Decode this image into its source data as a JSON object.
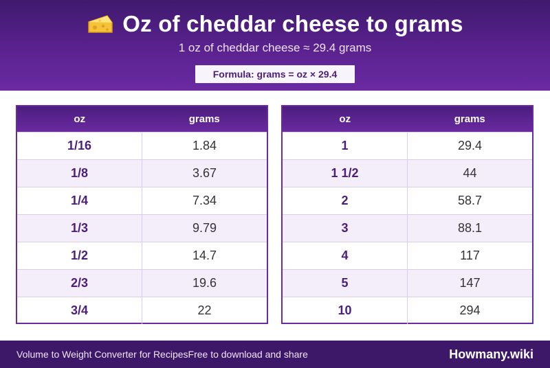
{
  "header": {
    "icon": "cheese-icon",
    "title": "Oz of cheddar cheese to grams",
    "subtitle": "1 oz of cheddar cheese ≈ 29.4 grams",
    "formula": "Formula: grams = oz × 29.4"
  },
  "tables": [
    {
      "col_oz": "oz",
      "col_grams": "grams",
      "rows": [
        {
          "oz": "1/16",
          "grams": "1.84"
        },
        {
          "oz": "1/8",
          "grams": "3.67"
        },
        {
          "oz": "1/4",
          "grams": "7.34"
        },
        {
          "oz": "1/3",
          "grams": "9.79"
        },
        {
          "oz": "1/2",
          "grams": "14.7"
        },
        {
          "oz": "2/3",
          "grams": "19.6"
        },
        {
          "oz": "3/4",
          "grams": "22"
        }
      ]
    },
    {
      "col_oz": "oz",
      "col_grams": "grams",
      "rows": [
        {
          "oz": "1",
          "grams": "29.4"
        },
        {
          "oz": "1 1/2",
          "grams": "44"
        },
        {
          "oz": "2",
          "grams": "58.7"
        },
        {
          "oz": "3",
          "grams": "88.1"
        },
        {
          "oz": "4",
          "grams": "117"
        },
        {
          "oz": "5",
          "grams": "147"
        },
        {
          "oz": "10",
          "grams": "294"
        }
      ]
    }
  ],
  "footer": {
    "tagline": "Volume to Weight Converter for RecipesFree to download and share",
    "brand": "Howmany.wiki"
  },
  "colors": {
    "header_purple": "#5a228f",
    "footer_purple": "#3e1868",
    "accent_text": "#4b1e78",
    "alt_row": "#f4eefb"
  }
}
